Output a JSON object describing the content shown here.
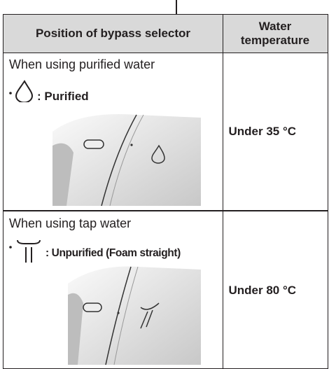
{
  "table": {
    "header": [
      "Position of bypass selector",
      "Water temperature"
    ],
    "rows": [
      {
        "mode": "When using purified water",
        "setting": ": Purified",
        "temperature": "Under 35 °C"
      },
      {
        "mode": "When using tap water",
        "setting": ": Unpurified (Foam straight)",
        "temperature": "Under 80 °C"
      }
    ]
  }
}
